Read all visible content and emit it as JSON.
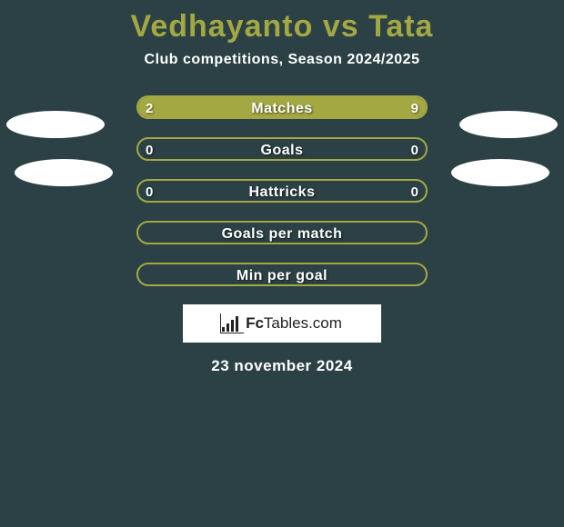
{
  "title": "Vedhayanto vs Tata",
  "subtitle": "Club competitions, Season 2024/2025",
  "date": "23 november 2024",
  "logo": {
    "brand_prefix": "Fc",
    "brand_suffix": "Tables.com"
  },
  "colors": {
    "bg": "#2c4145",
    "accent": "#a3a843",
    "text": "#ffffff",
    "blob": "#ffffff",
    "logo_bg": "#ffffff"
  },
  "rows": [
    {
      "label": "Matches",
      "left": "2",
      "right": "9",
      "left_pct": 18,
      "right_pct": 82
    },
    {
      "label": "Goals",
      "left": "0",
      "right": "0",
      "left_pct": 0,
      "right_pct": 0
    },
    {
      "label": "Hattricks",
      "left": "0",
      "right": "0",
      "left_pct": 0,
      "right_pct": 0
    },
    {
      "label": "Goals per match",
      "left": "",
      "right": "",
      "left_pct": 0,
      "right_pct": 0
    },
    {
      "label": "Min per goal",
      "left": "",
      "right": "",
      "left_pct": 0,
      "right_pct": 0
    }
  ]
}
